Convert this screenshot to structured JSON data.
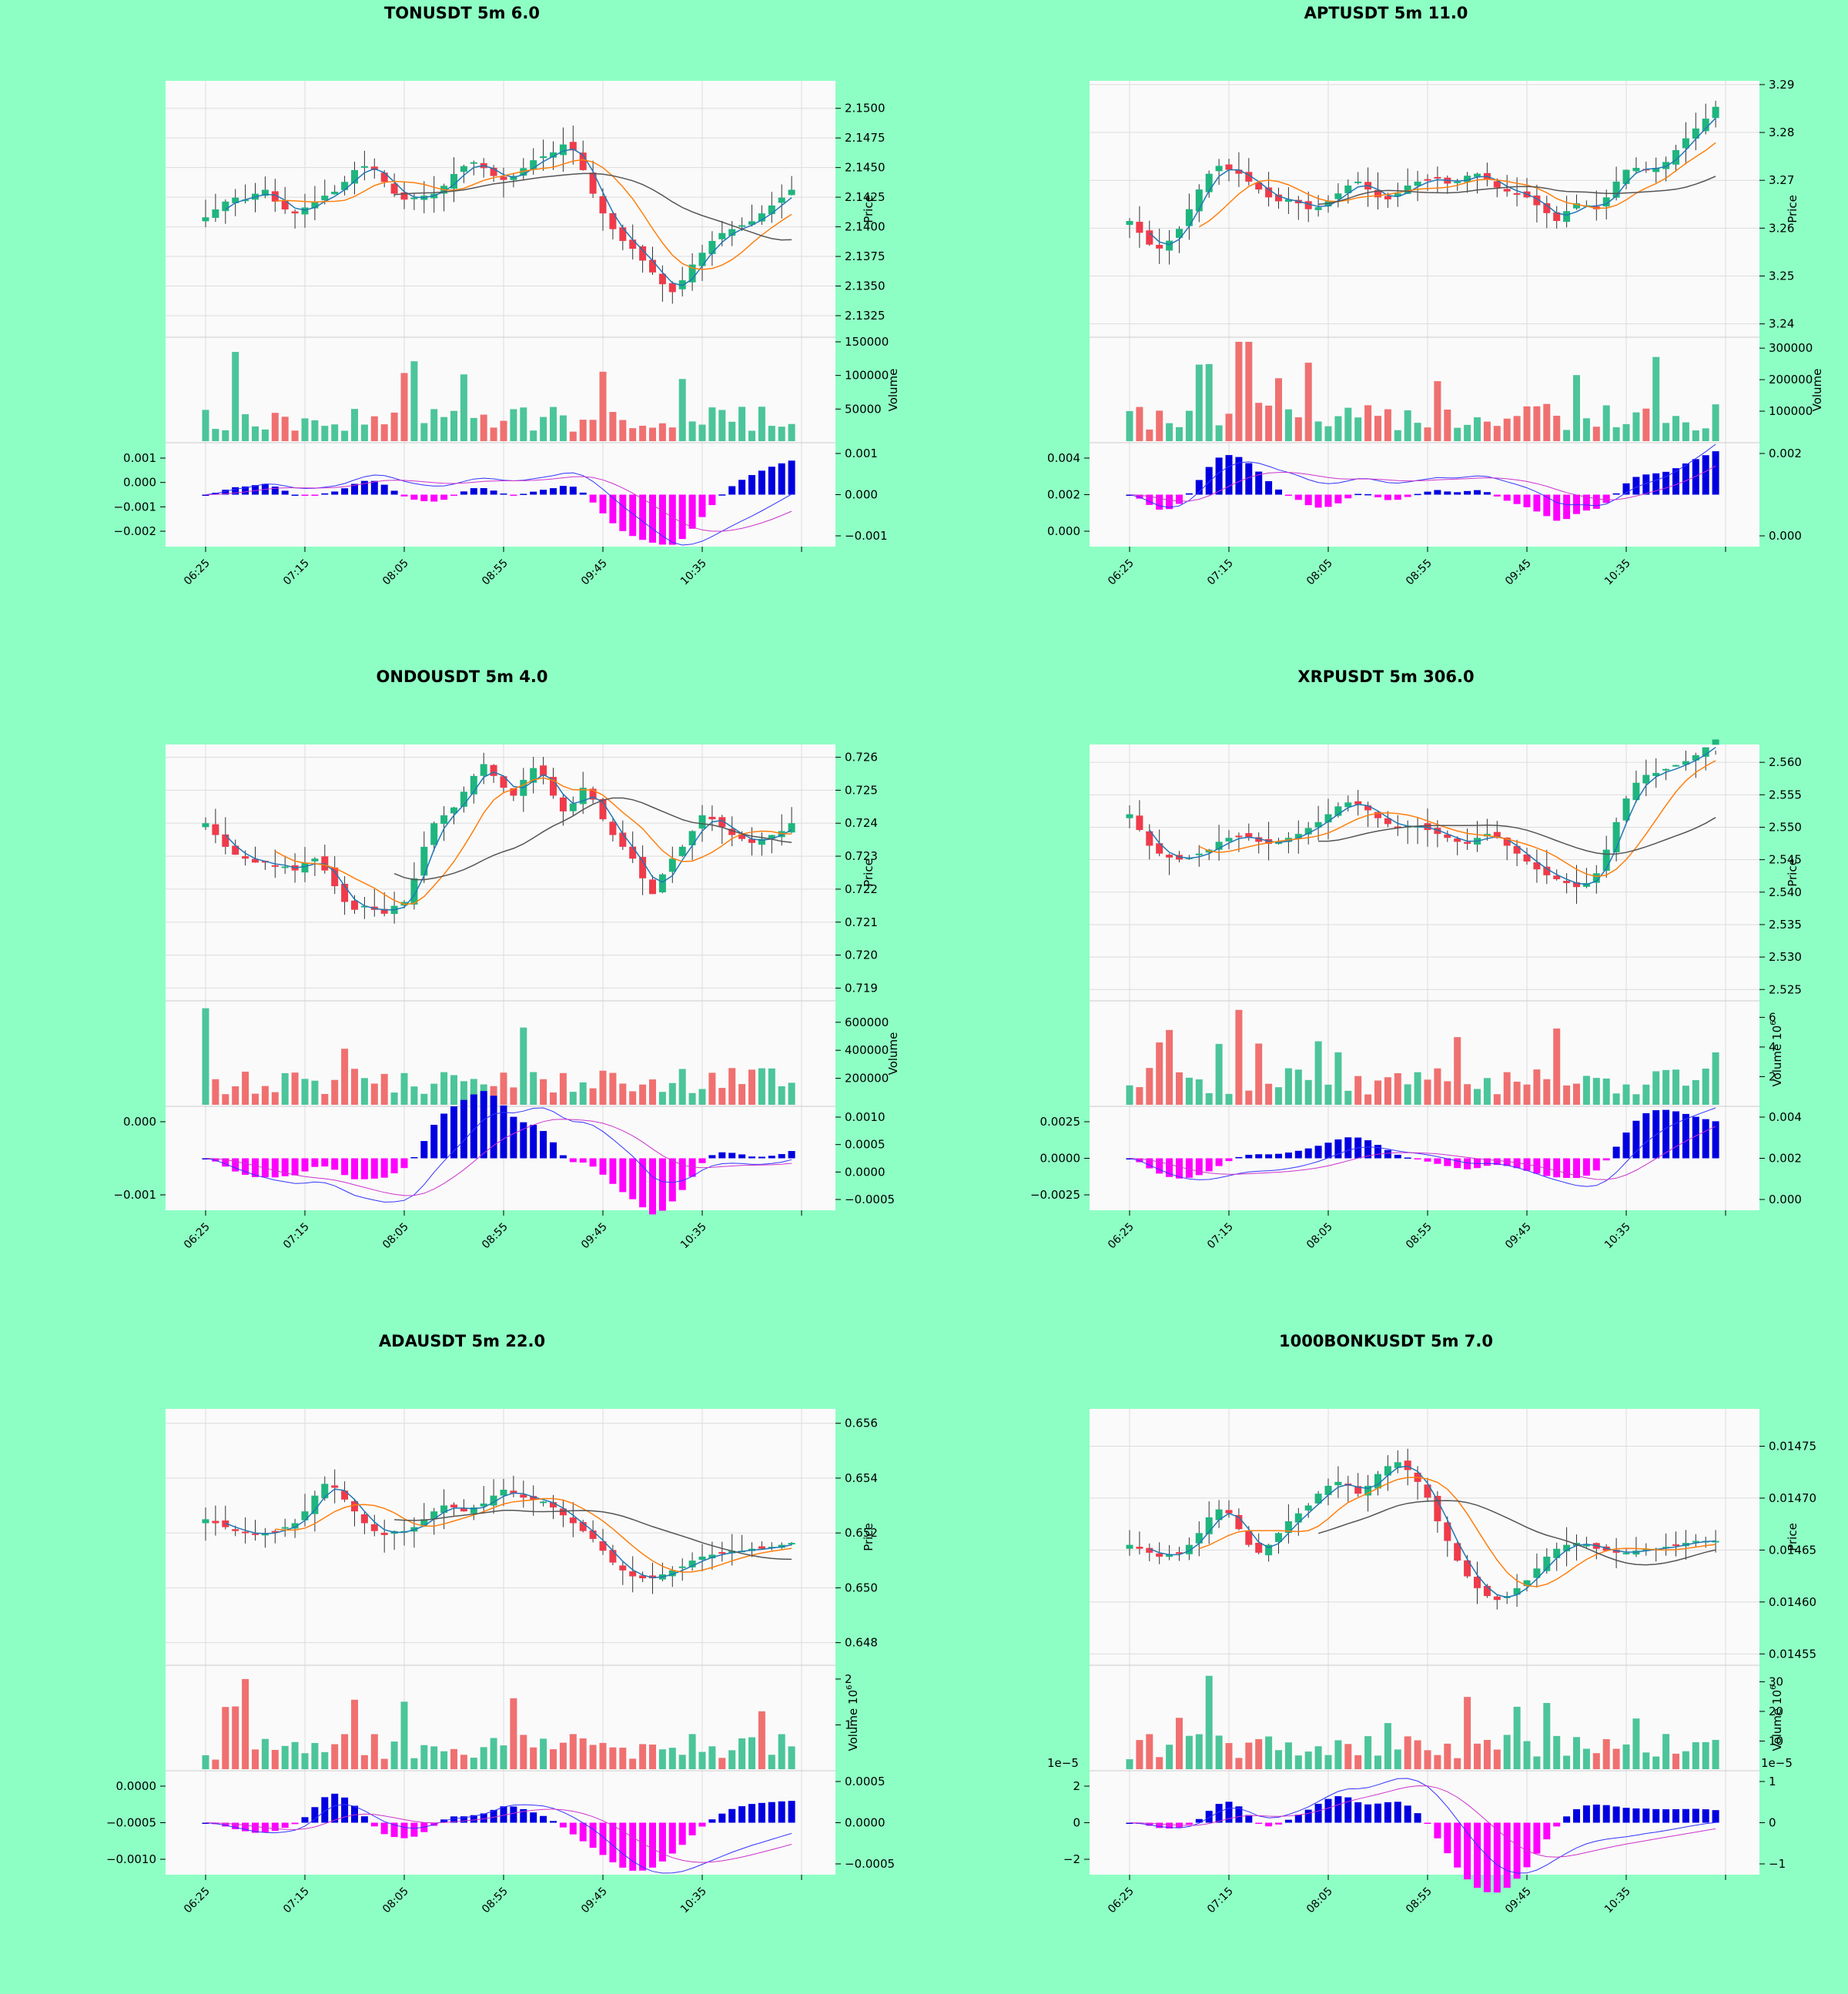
{
  "page": {
    "background": "#8effc4",
    "panel_background": "#fafafa"
  },
  "colors": {
    "up": "#26a69a",
    "up_body": "#1fb57e",
    "down": "#ef3b4a",
    "vol_up": "#4cc59a",
    "vol_down": "#f07070",
    "macd_pos": "#0000e0",
    "macd_neg": "#ff00ff",
    "ma_fast": "#1f77b4",
    "ma_mid": "#ff7f0e",
    "ma_slow": "#555555"
  },
  "x_ticks": [
    "06:25",
    "07:15",
    "08:05",
    "08:55",
    "09:45",
    "10:35"
  ],
  "chart_data": [
    {
      "type": "candlestick",
      "title": "TONUSDT 5m 6.0",
      "price": {
        "label": "Price",
        "ticks": [
          "2.1500",
          "2.1475",
          "2.1450",
          "2.1425",
          "2.1400",
          "2.1375",
          "2.1350",
          "2.1325"
        ],
        "ylim": [
          2.1312,
          2.1518
        ],
        "start": 2.1408,
        "trend": [
          0,
          0.2,
          0.4,
          0.5,
          0.45,
          0.6,
          0.7,
          0.4,
          0.2,
          0.1,
          0.25,
          0.4,
          0.55,
          0.65,
          0.9,
          1.2,
          1.3,
          1.2,
          0.9,
          0.6,
          0.45,
          0.5,
          0.55,
          0.6,
          0.8,
          1.1,
          1.3,
          1.4,
          1.25,
          1.05,
          0.95,
          1.05,
          1.25,
          1.45,
          1.55,
          1.65,
          1.85,
          1.7,
          1.2,
          0.6,
          0.1,
          -0.3,
          -0.6,
          -0.8,
          -1.1,
          -1.4,
          -1.7,
          -1.9,
          -1.6,
          -1.2,
          -0.9,
          -0.6,
          -0.4,
          -0.3,
          -0.2,
          -0.1,
          0.1,
          0.3,
          0.5,
          0.7
        ]
      },
      "volume": {
        "label": "Volume",
        "ticks": [
          "150000",
          "100000",
          "50000"
        ],
        "ylim": [
          0,
          150000
        ],
        "peak": 135000
      },
      "macd": {
        "left_ticks": [
          "0.001",
          "0.000",
          "−0.001",
          "−0.002"
        ],
        "right_ticks": [
          "0.001",
          "0.000",
          "−0.001"
        ]
      }
    },
    {
      "type": "candlestick",
      "title": "APTUSDT 5m 11.0",
      "price": {
        "label": "Price",
        "ticks": [
          "3.29",
          "3.28",
          "3.27",
          "3.26",
          "3.25",
          "3.24"
        ],
        "ylim": [
          3.2385,
          3.2895
        ],
        "start": 3.2615,
        "trend": [
          0,
          -0.3,
          -0.6,
          -0.7,
          -0.5,
          -0.2,
          0.3,
          0.8,
          1.2,
          1.4,
          1.3,
          1.2,
          1.0,
          0.8,
          0.6,
          0.5,
          0.55,
          0.45,
          0.3,
          0.35,
          0.5,
          0.7,
          0.9,
          1.0,
          0.8,
          0.6,
          0.55,
          0.7,
          0.9,
          1.0,
          1.05,
          1.1,
          0.95,
          1.0,
          1.15,
          1.2,
          1.05,
          0.85,
          0.75,
          0.7,
          0.6,
          0.4,
          0.2,
          0.0,
          0.25,
          0.45,
          0.4,
          0.3,
          0.6,
          1.0,
          1.3,
          1.35,
          1.3,
          1.35,
          1.5,
          1.8,
          2.1,
          2.35,
          2.6,
          2.9
        ]
      },
      "volume": {
        "label": "Volume",
        "ticks": [
          "300000",
          "200000",
          "100000"
        ],
        "ylim": [
          0,
          320000
        ],
        "peak": 320000
      },
      "macd": {
        "left_ticks": [
          "0.004",
          "0.002",
          "0.000"
        ],
        "right_ticks": [
          "0.002",
          "0.000"
        ]
      }
    },
    {
      "type": "candlestick",
      "title": "ONDOUSDT 5m 4.0",
      "price": {
        "label": "Price",
        "ticks": [
          "0.726",
          "0.725",
          "0.724",
          "0.723",
          "0.722",
          "0.721",
          "0.720",
          "0.719"
        ],
        "ylim": [
          0.7188,
          0.7262
        ],
        "start": 0.724,
        "trend": [
          0,
          -0.3,
          -0.6,
          -0.8,
          -0.9,
          -1.0,
          -1.0,
          -1.1,
          -1.1,
          -1.2,
          -1.0,
          -0.9,
          -1.2,
          -1.6,
          -2.0,
          -2.2,
          -2.1,
          -2.2,
          -2.3,
          -2.1,
          -2.0,
          -1.4,
          -0.6,
          0.0,
          0.2,
          0.4,
          0.8,
          1.2,
          1.5,
          1.2,
          0.9,
          0.7,
          1.1,
          1.4,
          1.2,
          0.7,
          0.3,
          0.5,
          0.9,
          0.6,
          0.1,
          -0.3,
          -0.6,
          -0.9,
          -1.4,
          -1.8,
          -1.3,
          -0.9,
          -0.6,
          -0.2,
          0.2,
          0.1,
          -0.1,
          -0.3,
          -0.4,
          -0.5,
          -0.4,
          -0.3,
          -0.2,
          0.0
        ]
      },
      "volume": {
        "label": "Volume",
        "ticks": [
          "600000",
          "400000",
          "200000"
        ],
        "ylim": [
          0,
          720000
        ],
        "peak": 700000
      },
      "macd": {
        "left_ticks": [
          "0.000",
          "−0.001"
        ],
        "right_ticks": [
          "0.0010",
          "0.0005",
          "0.0000",
          "−0.0005"
        ]
      }
    },
    {
      "type": "candlestick",
      "title": "XRPUSDT 5m 306.0",
      "price": {
        "label": "Price",
        "ticks": [
          "2.560",
          "2.555",
          "2.550",
          "2.545",
          "2.540",
          "2.535",
          "2.530",
          "2.525"
        ],
        "ylim": [
          2.5242,
          2.5618
        ],
        "start": 2.552,
        "trend": [
          0,
          -0.4,
          -0.8,
          -1.0,
          -1.1,
          -1.15,
          -1.1,
          -1.0,
          -0.9,
          -0.7,
          -0.6,
          -0.55,
          -0.6,
          -0.7,
          -0.75,
          -0.7,
          -0.6,
          -0.5,
          -0.35,
          -0.2,
          0.0,
          0.2,
          0.3,
          0.25,
          0.1,
          -0.1,
          -0.25,
          -0.35,
          -0.3,
          -0.3,
          -0.4,
          -0.5,
          -0.6,
          -0.7,
          -0.75,
          -0.6,
          -0.5,
          -0.6,
          -0.8,
          -1.0,
          -1.2,
          -1.4,
          -1.55,
          -1.65,
          -1.75,
          -1.85,
          -1.75,
          -1.5,
          -0.9,
          -0.2,
          0.4,
          0.8,
          1.0,
          1.05,
          1.15,
          1.25,
          1.35,
          1.5,
          1.7,
          1.9
        ]
      },
      "volume": {
        "label": "Volume  $10^6$",
        "ticks": [
          "6",
          "4",
          "2"
        ],
        "ylim": [
          0,
          6.8
        ],
        "peak": 6.5
      },
      "macd": {
        "left_ticks": [
          "0.0025",
          "0.0000",
          "−0.0025"
        ],
        "right_ticks": [
          "0.004",
          "0.002",
          "0.000"
        ]
      }
    },
    {
      "type": "candlestick",
      "title": "ADAUSDT 5m 22.0",
      "price": {
        "label": "Price",
        "ticks": [
          "0.656",
          "0.654",
          "0.652",
          "0.650",
          "0.648"
        ],
        "ylim": [
          0.6474,
          0.6563
        ],
        "start": 0.6525,
        "trend": [
          0,
          -0.1,
          -0.2,
          -0.3,
          -0.35,
          -0.4,
          -0.35,
          -0.3,
          -0.2,
          -0.1,
          0.2,
          0.6,
          0.9,
          0.8,
          0.5,
          0.2,
          -0.1,
          -0.3,
          -0.4,
          -0.3,
          -0.3,
          -0.2,
          0.0,
          0.2,
          0.35,
          0.3,
          0.2,
          0.3,
          0.4,
          0.6,
          0.75,
          0.65,
          0.55,
          0.5,
          0.45,
          0.3,
          0.1,
          -0.1,
          -0.3,
          -0.5,
          -0.8,
          -1.1,
          -1.3,
          -1.45,
          -1.5,
          -1.5,
          -1.4,
          -1.3,
          -1.2,
          -1.05,
          -0.95,
          -0.9,
          -0.85,
          -0.8,
          -0.8,
          -0.75,
          -0.75,
          -0.7,
          -0.65,
          -0.6
        ]
      },
      "volume": {
        "label": "Volume  $10^6$",
        "ticks": [
          "2",
          "1"
        ],
        "ylim": [
          0,
          2.2
        ],
        "peak": 2.0
      },
      "macd": {
        "left_ticks": [
          "0.0000",
          "−0.0005",
          "−0.0010"
        ],
        "right_ticks": [
          "0.0005",
          "0.0000",
          "−0.0005"
        ]
      }
    },
    {
      "type": "candlestick",
      "title": "1000BONKUSDT 5m 7.0",
      "price": {
        "label": "Price",
        "ticks": [
          "0.01475",
          "0.01470",
          "0.01465",
          "0.01460",
          "0.01455"
        ],
        "ylim": [
          0.014545,
          0.01478
        ],
        "start": 0.014655,
        "trend": [
          0,
          -0.1,
          -0.2,
          -0.3,
          -0.25,
          -0.2,
          0.0,
          0.3,
          0.7,
          0.9,
          0.8,
          0.4,
          0.0,
          -0.2,
          0.0,
          0.3,
          0.6,
          0.8,
          1.0,
          1.3,
          1.5,
          1.6,
          1.5,
          1.3,
          1.5,
          1.8,
          2.0,
          2.1,
          1.9,
          1.6,
          1.2,
          0.6,
          0.1,
          -0.4,
          -0.8,
          -1.1,
          -1.3,
          -1.4,
          -1.3,
          -1.1,
          -0.9,
          -0.6,
          -0.3,
          -0.1,
          0.0,
          0.05,
          0.0,
          -0.1,
          -0.15,
          -0.2,
          -0.2,
          -0.15,
          -0.1,
          -0.1,
          -0.05,
          0.0,
          0.05,
          0.1,
          0.1,
          0.1
        ]
      },
      "volume": {
        "label": "Volume  $10^6$",
        "ticks": [
          "30",
          "20",
          "10"
        ],
        "ylim": [
          0,
          34
        ],
        "peak": 32
      },
      "macd": {
        "left_ticks": [
          "2",
          "0",
          "−2"
        ],
        "right_ticks": [
          "1",
          "0",
          "−1"
        ],
        "left_offset": "1e−5",
        "right_offset": "1e−5"
      }
    }
  ]
}
